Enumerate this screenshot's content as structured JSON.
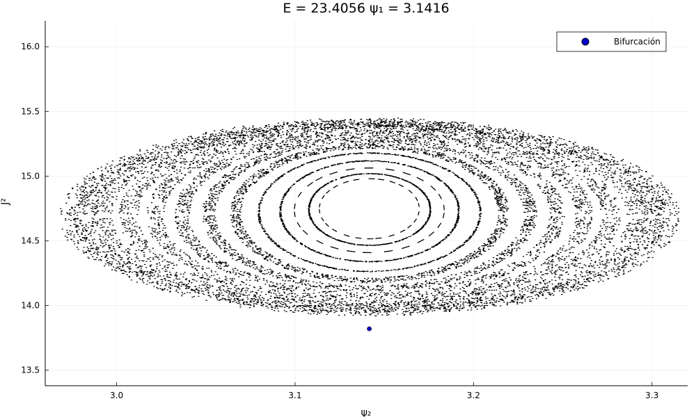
{
  "chart_data": {
    "type": "scatter",
    "title": "E = 23.4056  ψ₁ = 3.1416",
    "xlabel": "ψ₂",
    "ylabel": "J²",
    "xlim": [
      2.96,
      3.32
    ],
    "ylim": [
      13.38,
      16.2
    ],
    "xticks": [
      3.0,
      3.1,
      3.2,
      3.3
    ],
    "xtick_labels": [
      "3.0",
      "3.1",
      "3.2",
      "3.3"
    ],
    "yticks": [
      13.5,
      14.0,
      14.5,
      15.0,
      15.5,
      16.0
    ],
    "ytick_labels": [
      "13.5",
      "14.0",
      "14.5",
      "15.0",
      "15.5",
      "16.0"
    ],
    "grid": true,
    "legend_position": "top-right",
    "series": [
      {
        "kind": "poincare-section",
        "marker_color": "#000000",
        "center": [
          3.1416,
          14.78
        ],
        "orbits": [
          {
            "rx": 0.028,
            "ry": 0.42,
            "shift": 0.15,
            "pattern": "segments"
          },
          {
            "rx": 0.034,
            "ry": 0.5,
            "shift": 0.17,
            "pattern": "dots"
          },
          {
            "rx": 0.042,
            "ry": 0.59,
            "shift": 0.2,
            "pattern": "segments"
          },
          {
            "rx": 0.05,
            "ry": 0.7,
            "shift": 0.25,
            "pattern": "dots"
          },
          {
            "rx": 0.062,
            "ry": 0.82,
            "shift": 0.3,
            "pattern": "dots"
          },
          {
            "rx": 0.075,
            "ry": 0.93,
            "shift": 0.35,
            "pattern": "scatter"
          },
          {
            "rx": 0.09,
            "ry": 1.03,
            "shift": 0.38,
            "pattern": "scatter"
          },
          {
            "rx": 0.105,
            "ry": 1.12,
            "shift": 0.4,
            "pattern": "scatter"
          },
          {
            "rx": 0.12,
            "ry": 1.2,
            "shift": 0.4,
            "pattern": "scatter"
          },
          {
            "rx": 0.135,
            "ry": 1.25,
            "shift": 0.38,
            "pattern": "scatter"
          },
          {
            "rx": 0.15,
            "ry": 1.28,
            "shift": 0.36,
            "pattern": "scatter"
          },
          {
            "rx": 0.16,
            "ry": 1.3,
            "shift": 0.34,
            "pattern": "scatter"
          },
          {
            "rx": 0.167,
            "ry": 1.32,
            "shift": 0.33,
            "pattern": "scatter"
          }
        ]
      },
      {
        "name": "Bifurcación",
        "marker_color": "#0000cc",
        "x": [
          3.1416
        ],
        "y": [
          13.82
        ]
      }
    ]
  }
}
